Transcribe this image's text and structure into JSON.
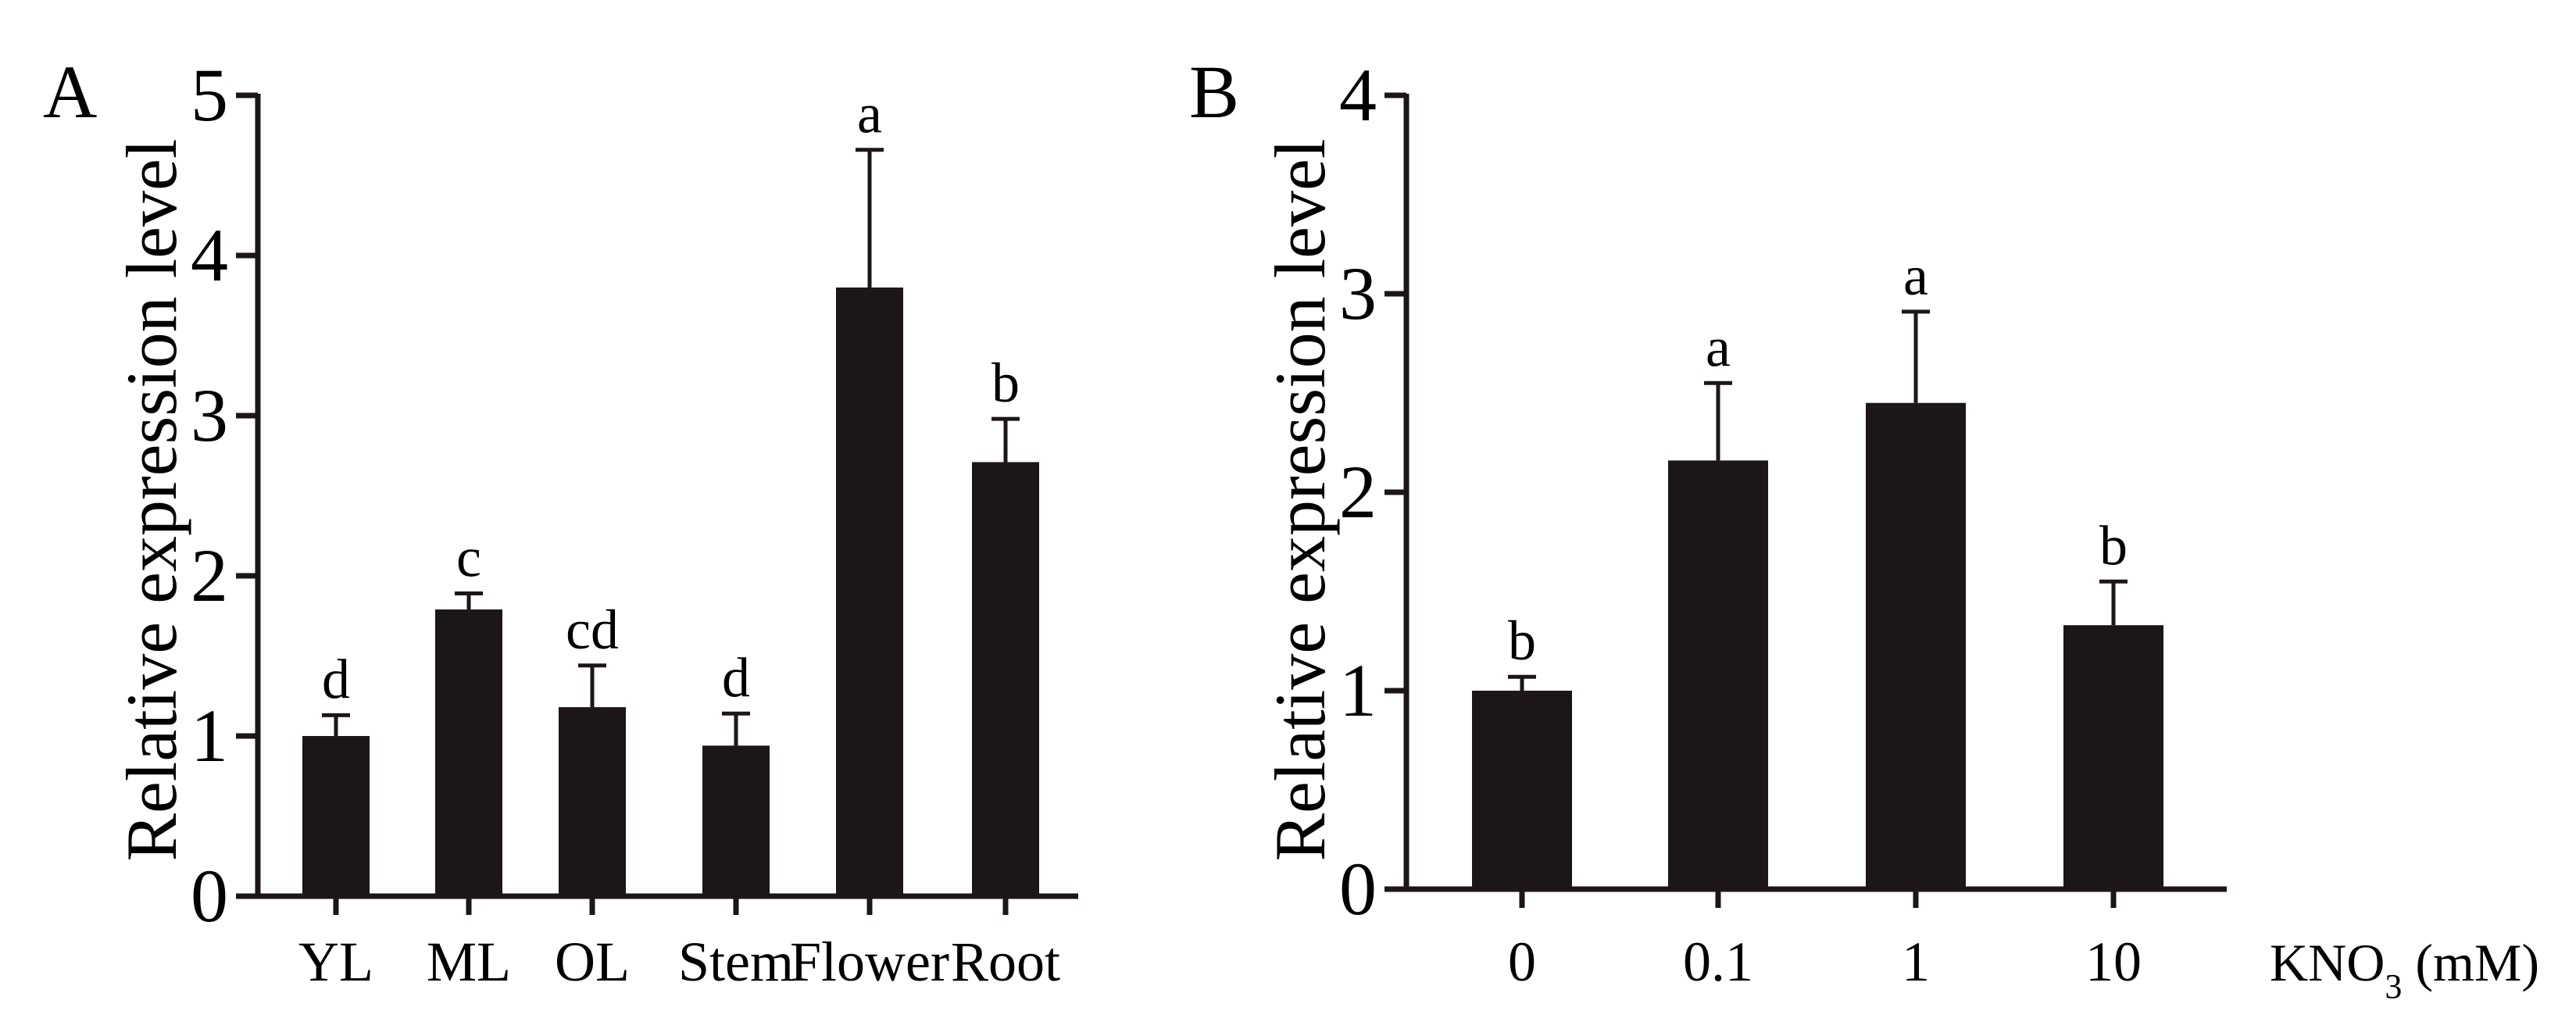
{
  "colors": {
    "bar": "#1c1616",
    "axis": "#1c1616",
    "background": "#ffffff"
  },
  "chart_data": [
    {
      "panel": "A",
      "type": "bar",
      "ylabel": "Relative expression level",
      "xlabel": "",
      "ylim": [
        0,
        5
      ],
      "yticks": [
        "0",
        "1",
        "2",
        "3",
        "4",
        "5"
      ],
      "categories": [
        "YL",
        "ML",
        "OL",
        "Stem",
        "Flower",
        "Root"
      ],
      "values": [
        1.0,
        1.79,
        1.18,
        0.94,
        3.8,
        2.71
      ],
      "errors": [
        0.13,
        0.1,
        0.26,
        0.2,
        0.86,
        0.27
      ],
      "significance": [
        "d",
        "c",
        "cd",
        "d",
        "a",
        "b"
      ],
      "grid": false
    },
    {
      "panel": "B",
      "type": "bar",
      "ylabel": "Relative expression level",
      "xlabel": "KNO",
      "xlabel_sub": "3",
      "xlabel_unit": " (mM)",
      "ylim": [
        0,
        4
      ],
      "yticks": [
        "0",
        "1",
        "2",
        "3",
        "4"
      ],
      "categories": [
        "0",
        "0.1",
        "1",
        "10"
      ],
      "values": [
        1.0,
        2.16,
        2.45,
        1.33
      ],
      "errors": [
        0.07,
        0.39,
        0.46,
        0.22
      ],
      "significance": [
        "b",
        "a",
        "a",
        "b"
      ],
      "grid": false
    }
  ]
}
